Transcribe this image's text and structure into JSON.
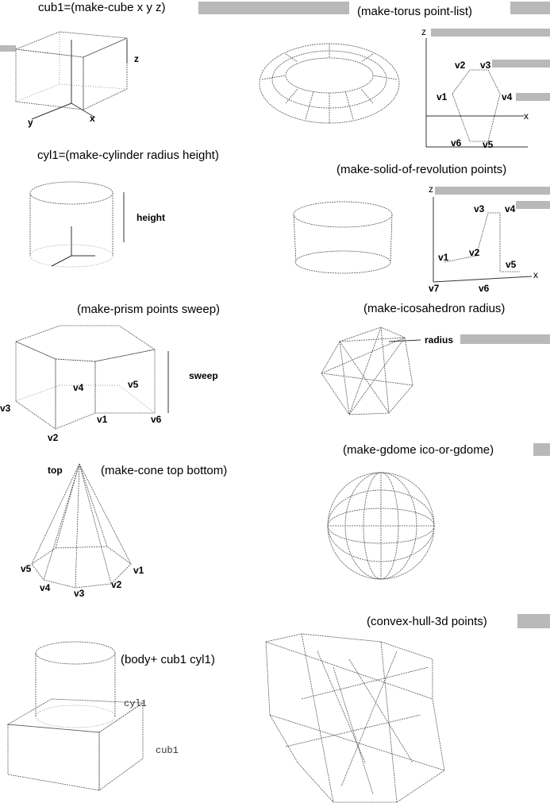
{
  "titles": {
    "cube": "cub1=(make-cube x y z)",
    "torus": "(make-torus point-list)",
    "cylinder": "cyl1=(make-cylinder radius height)",
    "revolution": "(make-solid-of-revolution points)",
    "prism": "(make-prism points sweep)",
    "icosahedron": "(make-icosahedron radius)",
    "gdome": "(make-gdome ico-or-gdome)",
    "cone": "(make-cone top bottom)",
    "hull": "(convex-hull-3d points)",
    "body": "(body+ cub1 cyl1)"
  },
  "labels": {
    "cube_z": "z",
    "cube_y": "y",
    "cube_x": "x",
    "torus_z": "z",
    "torus_x": "x",
    "torus_v1": "v1",
    "torus_v2": "v2",
    "torus_v3": "v3",
    "torus_v4": "v4",
    "torus_v5": "v5",
    "torus_v6": "v6",
    "cyl_height": "height",
    "rev_z": "z",
    "rev_x": "x",
    "rev_v1": "v1",
    "rev_v2": "v2",
    "rev_v3": "v3",
    "rev_v4": "v4",
    "rev_v5": "v5",
    "rev_v6": "v6",
    "rev_v7": "v7",
    "prism_sweep": "sweep",
    "prism_v1": "v1",
    "prism_v2": "v2",
    "prism_v3": "v3",
    "prism_v4": "v4",
    "prism_v5": "v5",
    "prism_v6": "v6",
    "ico_radius": "radius",
    "cone_top": "top",
    "cone_v1": "v1",
    "cone_v2": "v2",
    "cone_v3": "v3",
    "cone_v4": "v4",
    "cone_v5": "v5",
    "body_cyl1": "cyl1",
    "body_cub1": "cub1"
  }
}
